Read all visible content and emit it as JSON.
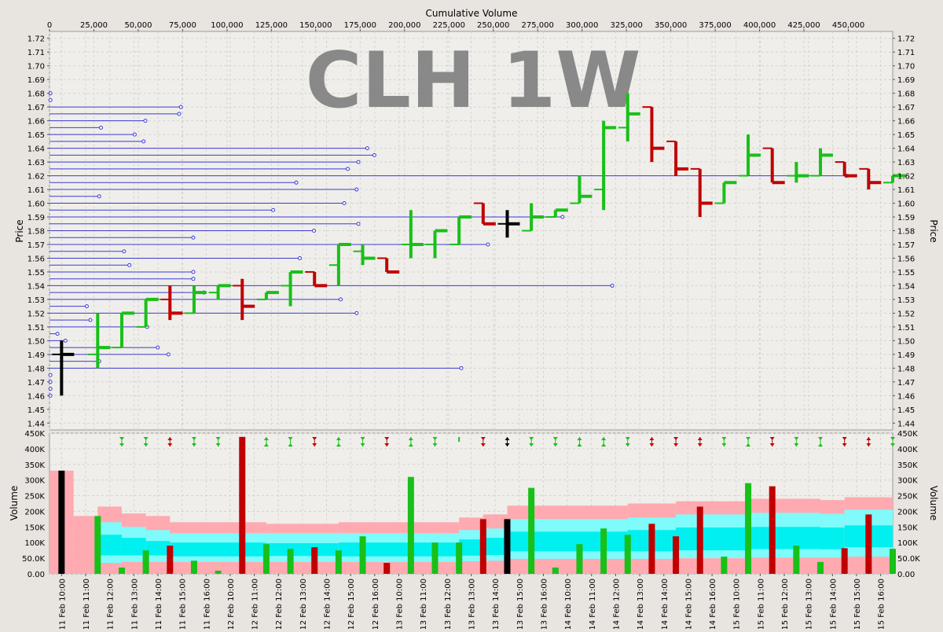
{
  "chart_data": {
    "type": "ohlc_volume_profile",
    "title": "CLH 1W",
    "top_axis_label": "Cumulative Volume",
    "top_axis_ticks": [
      "0",
      "25,000",
      "50,000",
      "75,000",
      "100,000",
      "125,000",
      "150,000",
      "175,000",
      "200,000",
      "225,000",
      "250,000",
      "275,000",
      "300,000",
      "325,000",
      "350,000",
      "375,000",
      "400,000",
      "425,000",
      "450,000"
    ],
    "price_axis_label": "Price",
    "price_range": [
      1.435,
      1.725
    ],
    "price_ticks": [
      "1.44",
      "1.45",
      "1.46",
      "1.47",
      "1.48",
      "1.49",
      "1.50",
      "1.51",
      "1.52",
      "1.53",
      "1.54",
      "1.55",
      "1.56",
      "1.57",
      "1.58",
      "1.59",
      "1.60",
      "1.61",
      "1.62",
      "1.63",
      "1.64",
      "1.65",
      "1.66",
      "1.67",
      "1.68",
      "1.69",
      "1.70",
      "1.71",
      "1.72"
    ],
    "volume_axis_label": "Volume",
    "volume_range": [
      0,
      450000
    ],
    "volume_ticks": [
      "0.00",
      "50.0K",
      "100K",
      "150K",
      "200K",
      "250K",
      "300K",
      "350K",
      "400K",
      "450K"
    ],
    "time_ticks": [
      "11 Feb 10:00",
      "11 Feb 11:00",
      "11 Feb 12:00",
      "11 Feb 13:00",
      "11 Feb 14:00",
      "11 Feb 15:00",
      "11 Feb 16:00",
      "12 Feb 10:00",
      "12 Feb 11:00",
      "12 Feb 12:00",
      "12 Feb 13:00",
      "12 Feb 14:00",
      "12 Feb 15:00",
      "12 Feb 16:00",
      "13 Feb 10:00",
      "13 Feb 11:00",
      "13 Feb 12:00",
      "13 Feb 13:00",
      "13 Feb 14:00",
      "13 Feb 15:00",
      "13 Feb 16:00",
      "14 Feb 10:00",
      "14 Feb 11:00",
      "14 Feb 12:00",
      "14 Feb 13:00",
      "14 Feb 14:00",
      "14 Feb 15:00",
      "14 Feb 16:00",
      "15 Feb 10:00",
      "15 Feb 11:00",
      "15 Feb 12:00",
      "15 Feb 13:00",
      "15 Feb 14:00",
      "15 Feb 15:00",
      "15 Feb 16:00"
    ],
    "colors": {
      "up": "#18c018",
      "down": "#c00000",
      "neutral": "#000000",
      "profile": "#3b3bd6",
      "band_outer": "#ffaab0",
      "band_mid": "#7ffbfb",
      "band_inner": "#00f0f0"
    },
    "bars": [
      {
        "x": 0,
        "o": 1.49,
        "h": 1.5,
        "l": 1.46,
        "c": 1.49,
        "dir": "neutral",
        "vol": 330000,
        "arrow": ""
      },
      {
        "x": 1.5,
        "o": 1.49,
        "h": 1.52,
        "l": 1.48,
        "c": 1.495,
        "dir": "up",
        "vol": 185000,
        "arrow": ""
      },
      {
        "x": 2.5,
        "o": 1.495,
        "h": 1.52,
        "l": 1.495,
        "c": 1.52,
        "dir": "up",
        "vol": 20000,
        "arrow": "dd"
      },
      {
        "x": 3.5,
        "o": 1.51,
        "h": 1.53,
        "l": 1.51,
        "c": 1.53,
        "dir": "up",
        "vol": 75000,
        "arrow": "dd"
      },
      {
        "x": 4.5,
        "o": 1.53,
        "h": 1.54,
        "l": 1.515,
        "c": 1.52,
        "dir": "down",
        "vol": 90000,
        "arrow": "ud"
      },
      {
        "x": 5.5,
        "o": 1.52,
        "h": 1.54,
        "l": 1.52,
        "c": 1.535,
        "dir": "up",
        "vol": 42000,
        "arrow": "dd"
      },
      {
        "x": 6.5,
        "o": 1.535,
        "h": 1.54,
        "l": 1.53,
        "c": 1.54,
        "dir": "up",
        "vol": 10000,
        "arrow": "dd"
      },
      {
        "x": 7.5,
        "o": 1.54,
        "h": 1.545,
        "l": 1.515,
        "c": 1.525,
        "dir": "down",
        "vol": 438000,
        "arrow": "ud"
      },
      {
        "x": 8.5,
        "o": 1.53,
        "h": 1.535,
        "l": 1.53,
        "c": 1.535,
        "dir": "up",
        "vol": 95000,
        "arrow": "uu"
      },
      {
        "x": 9.5,
        "o": 1.54,
        "h": 1.55,
        "l": 1.525,
        "c": 1.55,
        "dir": "up",
        "vol": 80000,
        "arrow": "du"
      },
      {
        "x": 10.5,
        "o": 1.55,
        "h": 1.55,
        "l": 1.54,
        "c": 1.54,
        "dir": "down",
        "vol": 85000,
        "arrow": "dd"
      },
      {
        "x": 11.5,
        "o": 1.555,
        "h": 1.57,
        "l": 1.54,
        "c": 1.57,
        "dir": "up",
        "vol": 75000,
        "arrow": "uu"
      },
      {
        "x": 12.5,
        "o": 1.565,
        "h": 1.57,
        "l": 1.555,
        "c": 1.56,
        "dir": "up",
        "vol": 120000,
        "arrow": "dd"
      },
      {
        "x": 13.5,
        "o": 1.56,
        "h": 1.56,
        "l": 1.55,
        "c": 1.55,
        "dir": "down",
        "vol": 35000,
        "arrow": "dd"
      },
      {
        "x": 14.5,
        "o": 1.57,
        "h": 1.595,
        "l": 1.56,
        "c": 1.57,
        "dir": "up",
        "vol": 310000,
        "arrow": "uu"
      },
      {
        "x": 15.5,
        "o": 1.57,
        "h": 1.58,
        "l": 1.56,
        "c": 1.58,
        "dir": "up",
        "vol": 100000,
        "arrow": "dd"
      },
      {
        "x": 16.5,
        "o": 1.57,
        "h": 1.59,
        "l": 1.57,
        "c": 1.59,
        "dir": "up",
        "vol": 100000,
        "arrow": "tick"
      },
      {
        "x": 17.5,
        "o": 1.6,
        "h": 1.6,
        "l": 1.585,
        "c": 1.585,
        "dir": "down",
        "vol": 175000,
        "arrow": "dd"
      },
      {
        "x": 18.5,
        "o": 1.585,
        "h": 1.595,
        "l": 1.575,
        "c": 1.585,
        "dir": "neutral",
        "vol": 175000,
        "arrow": "ud"
      },
      {
        "x": 19.5,
        "o": 1.58,
        "h": 1.6,
        "l": 1.58,
        "c": 1.59,
        "dir": "up",
        "vol": 275000,
        "arrow": "dd"
      },
      {
        "x": 20.5,
        "o": 1.59,
        "h": 1.595,
        "l": 1.59,
        "c": 1.595,
        "dir": "up",
        "vol": 20000,
        "arrow": "dd"
      },
      {
        "x": 21.5,
        "o": 1.6,
        "h": 1.62,
        "l": 1.6,
        "c": 1.605,
        "dir": "up",
        "vol": 95000,
        "arrow": "uu"
      },
      {
        "x": 22.5,
        "o": 1.61,
        "h": 1.66,
        "l": 1.595,
        "c": 1.655,
        "dir": "up",
        "vol": 145000,
        "arrow": "uu"
      },
      {
        "x": 23.5,
        "o": 1.655,
        "h": 1.68,
        "l": 1.645,
        "c": 1.665,
        "dir": "up",
        "vol": 125000,
        "arrow": "dd"
      },
      {
        "x": 24.5,
        "o": 1.67,
        "h": 1.67,
        "l": 1.63,
        "c": 1.64,
        "dir": "down",
        "vol": 160000,
        "arrow": "ud"
      },
      {
        "x": 25.5,
        "o": 1.645,
        "h": 1.645,
        "l": 1.62,
        "c": 1.625,
        "dir": "down",
        "vol": 120000,
        "arrow": "dd"
      },
      {
        "x": 26.5,
        "o": 1.625,
        "h": 1.625,
        "l": 1.59,
        "c": 1.6,
        "dir": "down",
        "vol": 215000,
        "arrow": "ud"
      },
      {
        "x": 27.5,
        "o": 1.6,
        "h": 1.615,
        "l": 1.6,
        "c": 1.615,
        "dir": "up",
        "vol": 55000,
        "arrow": "dd"
      },
      {
        "x": 28.5,
        "o": 1.62,
        "h": 1.65,
        "l": 1.62,
        "c": 1.635,
        "dir": "up",
        "vol": 290000,
        "arrow": "du"
      },
      {
        "x": 29.5,
        "o": 1.64,
        "h": 1.64,
        "l": 1.615,
        "c": 1.615,
        "dir": "down",
        "vol": 280000,
        "arrow": "dd"
      },
      {
        "x": 30.5,
        "o": 1.62,
        "h": 1.63,
        "l": 1.615,
        "c": 1.62,
        "dir": "up",
        "vol": 90000,
        "arrow": "dd"
      },
      {
        "x": 31.5,
        "o": 1.62,
        "h": 1.64,
        "l": 1.62,
        "c": 1.635,
        "dir": "up",
        "vol": 38000,
        "arrow": "du"
      },
      {
        "x": 32.5,
        "o": 1.63,
        "h": 1.63,
        "l": 1.62,
        "c": 1.62,
        "dir": "down",
        "vol": 82000,
        "arrow": "dd"
      },
      {
        "x": 33.5,
        "o": 1.625,
        "h": 1.625,
        "l": 1.61,
        "c": 1.615,
        "dir": "down",
        "vol": 190000,
        "arrow": "ud"
      },
      {
        "x": 34.5,
        "o": 1.615,
        "h": 1.62,
        "l": 1.615,
        "c": 1.62,
        "dir": "up",
        "vol": 80000,
        "arrow": "dd"
      }
    ],
    "profile": [
      {
        "p": 1.46,
        "v": 500
      },
      {
        "p": 1.465,
        "v": 500
      },
      {
        "p": 1.47,
        "v": 500
      },
      {
        "p": 1.475,
        "v": 500
      },
      {
        "p": 1.48,
        "v": 232000
      },
      {
        "p": 1.485,
        "v": 28000
      },
      {
        "p": 1.49,
        "v": 67000
      },
      {
        "p": 1.495,
        "v": 61000
      },
      {
        "p": 1.5,
        "v": 9000
      },
      {
        "p": 1.505,
        "v": 4500
      },
      {
        "p": 1.51,
        "v": 55000
      },
      {
        "p": 1.515,
        "v": 23000
      },
      {
        "p": 1.52,
        "v": 173000
      },
      {
        "p": 1.525,
        "v": 21000
      },
      {
        "p": 1.53,
        "v": 164000
      },
      {
        "p": 1.535,
        "v": 87000
      },
      {
        "p": 1.54,
        "v": 317000
      },
      {
        "p": 1.545,
        "v": 81000
      },
      {
        "p": 1.55,
        "v": 81000
      },
      {
        "p": 1.555,
        "v": 45000
      },
      {
        "p": 1.56,
        "v": 141000
      },
      {
        "p": 1.565,
        "v": 42000
      },
      {
        "p": 1.57,
        "v": 247000
      },
      {
        "p": 1.575,
        "v": 81000
      },
      {
        "p": 1.58,
        "v": 149000
      },
      {
        "p": 1.585,
        "v": 174000
      },
      {
        "p": 1.59,
        "v": 289000
      },
      {
        "p": 1.595,
        "v": 126000
      },
      {
        "p": 1.6,
        "v": 166000
      },
      {
        "p": 1.605,
        "v": 28000
      },
      {
        "p": 1.61,
        "v": 173000
      },
      {
        "p": 1.615,
        "v": 139000
      },
      {
        "p": 1.62,
        "v": 449000
      },
      {
        "p": 1.625,
        "v": 168000
      },
      {
        "p": 1.63,
        "v": 174000
      },
      {
        "p": 1.635,
        "v": 183000
      },
      {
        "p": 1.64,
        "v": 179000
      },
      {
        "p": 1.645,
        "v": 53000
      },
      {
        "p": 1.65,
        "v": 48000
      },
      {
        "p": 1.655,
        "v": 29000
      },
      {
        "p": 1.66,
        "v": 54000
      },
      {
        "p": 1.665,
        "v": 73000
      },
      {
        "p": 1.67,
        "v": 74000
      },
      {
        "p": 1.675,
        "v": 500
      },
      {
        "p": 1.68,
        "v": 500
      }
    ],
    "bands": [
      {
        "x0": 0,
        "x1": 1,
        "outer": 330000,
        "mid": 0,
        "inner": 0,
        "base": 0
      },
      {
        "x0": 1,
        "x1": 2,
        "outer": 185000,
        "mid": 0,
        "inner": 0,
        "base": 0
      },
      {
        "x0": 2,
        "x1": 3,
        "outer": 215000,
        "mid": 165000,
        "inner": 125000,
        "base": 35000
      },
      {
        "x0": 3,
        "x1": 4,
        "outer": 193000,
        "mid": 150000,
        "inner": 115000,
        "base": 38000
      },
      {
        "x0": 4,
        "x1": 5,
        "outer": 185000,
        "mid": 140000,
        "inner": 105000,
        "base": 38000
      },
      {
        "x0": 5,
        "x1": 8,
        "outer": 165000,
        "mid": 130000,
        "inner": 100000,
        "base": 38000
      },
      {
        "x0": 8,
        "x1": 9,
        "outer": 165000,
        "mid": 130000,
        "inner": 100000,
        "base": 38000
      },
      {
        "x0": 9,
        "x1": 12,
        "outer": 160000,
        "mid": 130000,
        "inner": 98000,
        "base": 38000
      },
      {
        "x0": 12,
        "x1": 16,
        "outer": 165000,
        "mid": 130000,
        "inner": 100000,
        "base": 38000
      },
      {
        "x0": 16,
        "x1": 17,
        "outer": 165000,
        "mid": 130000,
        "inner": 100000,
        "base": 38000
      },
      {
        "x0": 17,
        "x1": 18,
        "outer": 180000,
        "mid": 140000,
        "inner": 110000,
        "base": 40000
      },
      {
        "x0": 18,
        "x1": 19,
        "outer": 190000,
        "mid": 145000,
        "inner": 115000,
        "base": 42000
      },
      {
        "x0": 19,
        "x1": 24,
        "outer": 218000,
        "mid": 175000,
        "inner": 135000,
        "base": 48000
      },
      {
        "x0": 24,
        "x1": 26,
        "outer": 225000,
        "mid": 180000,
        "inner": 140000,
        "base": 48000
      },
      {
        "x0": 26,
        "x1": 29,
        "outer": 232000,
        "mid": 190000,
        "inner": 148000,
        "base": 50000
      },
      {
        "x0": 29,
        "x1": 32,
        "outer": 240000,
        "mid": 195000,
        "inner": 150000,
        "base": 52000
      },
      {
        "x0": 32,
        "x1": 33,
        "outer": 236000,
        "mid": 192000,
        "inner": 148000,
        "base": 52000
      },
      {
        "x0": 33,
        "x1": 35,
        "outer": 245000,
        "mid": 205000,
        "inner": 155000,
        "base": 55000
      }
    ]
  }
}
